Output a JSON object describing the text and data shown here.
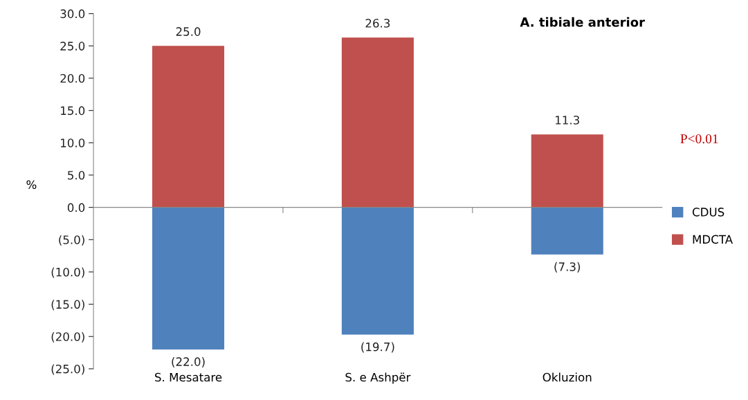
{
  "chart_data": {
    "type": "bar",
    "title": "A. tibiale anterior",
    "ylabel": "%",
    "categories": [
      "S. Mesatare",
      "S. e Ashpër",
      "Okluzion"
    ],
    "stacked": true,
    "series": [
      {
        "name": "CDUS",
        "color": "#4f81bd",
        "values": [
          -22.0,
          -19.7,
          -7.3
        ],
        "value_labels": [
          "(22.0)",
          "(19.7)",
          "(7.3)"
        ]
      },
      {
        "name": "MDCTA",
        "color": "#c0504d",
        "values": [
          25.0,
          26.3,
          11.3
        ],
        "value_labels": [
          "25.0",
          "26.3",
          "11.3"
        ]
      }
    ],
    "ylim": [
      -25,
      30
    ],
    "yticks": [
      {
        "value": -25,
        "label": "(25.0)"
      },
      {
        "value": -20,
        "label": "(20.0)"
      },
      {
        "value": -15,
        "label": "(15.0)"
      },
      {
        "value": -10,
        "label": "(10.0)"
      },
      {
        "value": -5,
        "label": "(5.0)"
      },
      {
        "value": 0,
        "label": "0.0"
      },
      {
        "value": 5,
        "label": "5.0"
      },
      {
        "value": 10,
        "label": "10.0"
      },
      {
        "value": 15,
        "label": "15.0"
      },
      {
        "value": 20,
        "label": "20.0"
      },
      {
        "value": 25,
        "label": "25.0"
      },
      {
        "value": 30,
        "label": "30.0"
      }
    ],
    "annotations": [
      "P<0.01"
    ],
    "legend": "right"
  }
}
